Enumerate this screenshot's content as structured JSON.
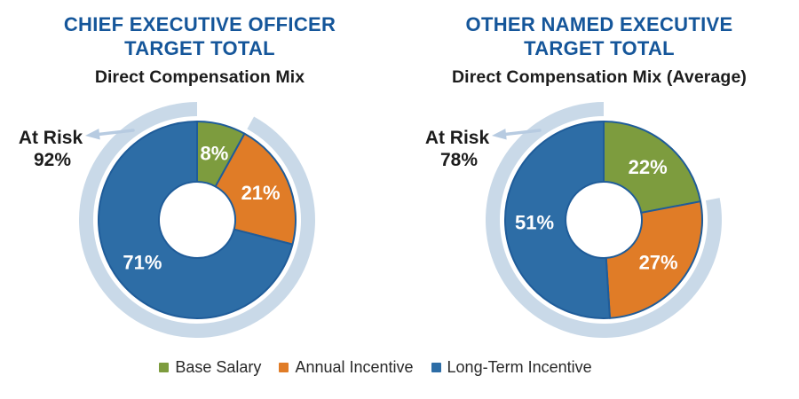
{
  "charts": [
    {
      "title_line1": "CHIEF EXECUTIVE OFFICER",
      "title_line2": "TARGET TOTAL",
      "subtitle": "Direct Compensation Mix",
      "at_risk_label": "At Risk",
      "at_risk_value": "92%"
    },
    {
      "title_line1": "OTHER NAMED EXECUTIVE",
      "title_line2": "TARGET TOTAL",
      "subtitle": "Direct Compensation Mix (Average)",
      "at_risk_label": "At Risk",
      "at_risk_value": "78%"
    }
  ],
  "chart_data": [
    {
      "type": "pie",
      "variant": "donut-with-at-risk-outer-ring",
      "title": "Chief Executive Officer Target Total",
      "subtitle": "Direct Compensation Mix",
      "categories": [
        "Base Salary",
        "Annual Incentive",
        "Long-Term Incentive"
      ],
      "values": [
        8,
        21,
        71
      ],
      "labels": [
        "8%",
        "21%",
        "71%"
      ],
      "at_risk_percent": 92,
      "start_angle_deg": 0,
      "direction": "clockwise",
      "legend_position": "bottom"
    },
    {
      "type": "pie",
      "variant": "donut-with-at-risk-outer-ring",
      "title": "Other Named Executive Target Total",
      "subtitle": "Direct Compensation Mix (Average)",
      "categories": [
        "Base Salary",
        "Annual Incentive",
        "Long-Term Incentive"
      ],
      "values": [
        22,
        27,
        51
      ],
      "labels": [
        "22%",
        "27%",
        "51%"
      ],
      "at_risk_percent": 78,
      "start_angle_deg": 0,
      "direction": "clockwise",
      "legend_position": "bottom"
    }
  ],
  "legend": {
    "items": [
      {
        "label": "Base Salary",
        "color": "#7d9c3e"
      },
      {
        "label": "Annual Incentive",
        "color": "#e07c27"
      },
      {
        "label": "Long-Term Incentive",
        "color": "#2d6da6"
      }
    ]
  },
  "colors": {
    "background": "#ffffff",
    "title_blue": "#15569a",
    "series": [
      "#7d9c3e",
      "#e07c27",
      "#2d6da6"
    ],
    "slice_border": "#1f5c99",
    "slice_label_text": "#ffffff",
    "at_risk_ring": "#c9d9e8",
    "arrow": "#b7cbe1",
    "text_dark": "#1c1c1c"
  }
}
